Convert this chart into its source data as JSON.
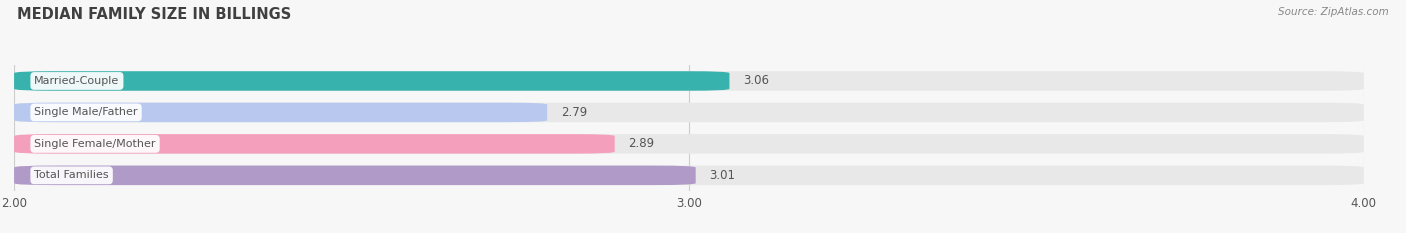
{
  "title": "MEDIAN FAMILY SIZE IN BILLINGS",
  "source": "Source: ZipAtlas.com",
  "categories": [
    "Married-Couple",
    "Single Male/Father",
    "Single Female/Mother",
    "Total Families"
  ],
  "values": [
    3.06,
    2.79,
    2.89,
    3.01
  ],
  "bar_colors": [
    "#38b2ac",
    "#b8c8ee",
    "#f4a0bc",
    "#b09ac8"
  ],
  "bar_bg_color": "#e8e8e8",
  "xmin": 2.0,
  "xmax": 4.0,
  "xticks": [
    2.0,
    3.0,
    4.0
  ],
  "label_color": "#555555",
  "title_color": "#404040",
  "value_color": "#555555",
  "source_color": "#888888",
  "bar_height": 0.62,
  "background_color": "#f7f7f7",
  "grid_color": "#cccccc",
  "title_fontsize": 10.5,
  "tick_fontsize": 8.5,
  "label_fontsize": 8.0,
  "value_fontsize": 8.5
}
